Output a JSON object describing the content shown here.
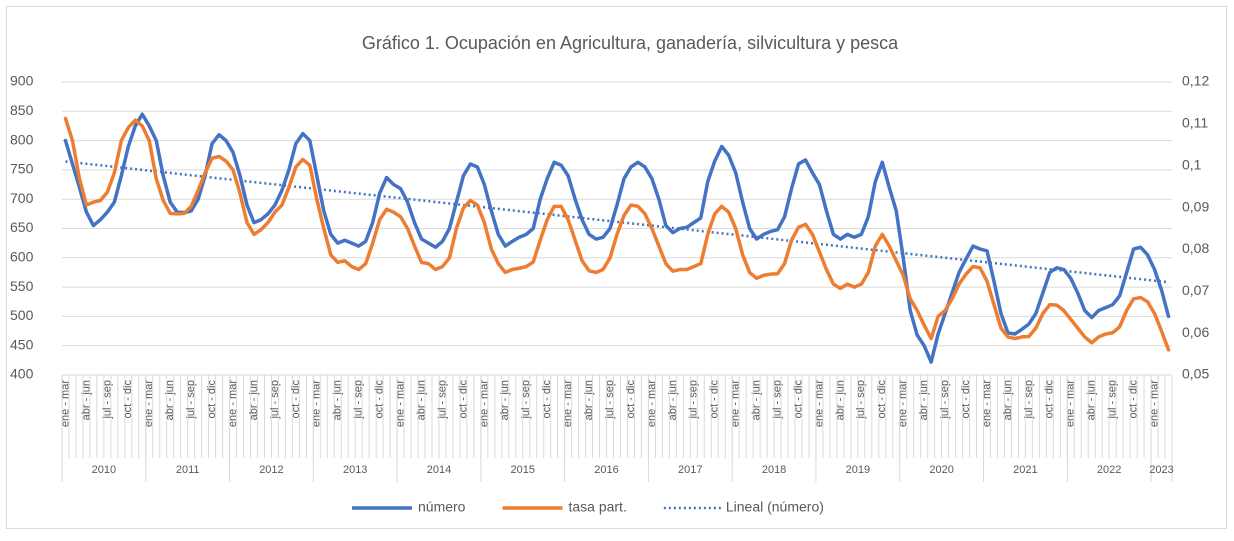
{
  "chart_data": {
    "type": "line",
    "title": "Gráfico 1. Ocupación en Agricultura, ganadería, silvicultura y pesca",
    "categories": [
      "ene - mar",
      null,
      null,
      "abr - jun",
      null,
      null,
      "jul - sep",
      null,
      null,
      "oct - dic",
      null,
      null,
      "ene - mar",
      null,
      null,
      "abr - jun",
      null,
      null,
      "jul - sep",
      null,
      null,
      "oct - dic",
      null,
      null,
      "ene - mar",
      null,
      null,
      "abr - jun",
      null,
      null,
      "jul - sep",
      null,
      null,
      "oct - dic",
      null,
      null,
      "ene - mar",
      null,
      null,
      "abr - jun",
      null,
      null,
      "jul - sep",
      null,
      null,
      "oct - dic",
      null,
      null,
      "ene - mar",
      null,
      null,
      "abr - jun",
      null,
      null,
      "jul - sep",
      null,
      null,
      "oct - dic",
      null,
      null,
      "ene - mar",
      null,
      null,
      "abr - jun",
      null,
      null,
      "jul - sep",
      null,
      null,
      "oct - dic",
      null,
      null,
      "ene - mar",
      null,
      null,
      "abr - jun",
      null,
      null,
      "jul - sep",
      null,
      null,
      "oct - dic",
      null,
      null,
      "ene - mar",
      null,
      null,
      "abr - jun",
      null,
      null,
      "jul - sep",
      null,
      null,
      "oct - dic",
      null,
      null,
      "ene - mar",
      null,
      null,
      "abr - jun",
      null,
      null,
      "jul - sep",
      null,
      null,
      "oct - dic",
      null,
      null,
      "ene - mar",
      null,
      null,
      "abr - jun",
      null,
      null,
      "jul - sep",
      null,
      null,
      "oct - dic",
      null,
      null,
      "ene - mar",
      null,
      null,
      "abr - jun",
      null,
      null,
      "jul - sep",
      null,
      null,
      "oct - dic",
      null,
      null,
      "ene - mar",
      null,
      null,
      "abr - jun",
      null,
      null,
      "jul - sep",
      null,
      null,
      "oct - dic",
      null,
      null,
      "ene - mar",
      null,
      null,
      "abr - jun",
      null,
      null,
      "jul - sep",
      null,
      null,
      "oct - dic",
      null,
      null,
      "ene - mar",
      null,
      null
    ],
    "groups": [
      "2010",
      "2011",
      "2012",
      "2013",
      "2014",
      "2015",
      "2016",
      "2017",
      "2018",
      "2019",
      "2020",
      "2021",
      "2022",
      "2023"
    ],
    "series": [
      {
        "name": "número",
        "color": "#4472c4",
        "values": [
          800,
          760,
          720,
          678,
          655,
          665,
          678,
          695,
          740,
          790,
          825,
          845,
          825,
          800,
          740,
          695,
          678,
          677,
          680,
          700,
          740,
          795,
          810,
          800,
          780,
          740,
          690,
          660,
          665,
          675,
          690,
          715,
          750,
          795,
          812,
          800,
          740,
          680,
          640,
          625,
          630,
          625,
          620,
          628,
          660,
          710,
          737,
          725,
          718,
          695,
          660,
          632,
          625,
          618,
          628,
          650,
          695,
          740,
          760,
          755,
          725,
          680,
          640,
          620,
          628,
          635,
          640,
          650,
          700,
          735,
          763,
          758,
          740,
          700,
          665,
          640,
          632,
          635,
          650,
          690,
          735,
          755,
          763,
          755,
          735,
          700,
          655,
          643,
          650,
          652,
          660,
          668,
          730,
          765,
          790,
          775,
          745,
          695,
          650,
          632,
          640,
          645,
          648,
          670,
          718,
          760,
          767,
          745,
          725,
          680,
          640,
          632,
          640,
          635,
          640,
          670,
          730,
          763,
          720,
          680,
          600,
          510,
          468,
          450,
          422,
          470,
          505,
          540,
          575,
          598,
          620,
          615,
          612,
          560,
          505,
          472,
          470,
          478,
          487,
          505,
          540,
          575,
          583,
          580,
          565,
          540,
          510,
          498,
          510,
          515,
          520,
          535,
          575,
          615,
          618,
          605,
          580,
          545,
          500
        ]
      },
      {
        "name": "tasa part.",
        "color": "#ed7d31",
        "axis": "y2",
        "values": [
          0.1113,
          0.106,
          0.0969,
          0.0906,
          0.0913,
          0.0917,
          0.0937,
          0.0983,
          0.106,
          0.1091,
          0.1109,
          0.1095,
          0.106,
          0.0969,
          0.0917,
          0.0886,
          0.0885,
          0.0886,
          0.0903,
          0.0941,
          0.0983,
          0.1018,
          0.1022,
          0.1011,
          0.099,
          0.0934,
          0.0864,
          0.0836,
          0.0847,
          0.0864,
          0.0889,
          0.0906,
          0.0948,
          0.0997,
          0.1015,
          0.1001,
          0.092,
          0.085,
          0.0787,
          0.0769,
          0.0773,
          0.0759,
          0.0752,
          0.0766,
          0.0815,
          0.0871,
          0.0896,
          0.0889,
          0.0878,
          0.085,
          0.0808,
          0.0769,
          0.0766,
          0.0752,
          0.0759,
          0.078,
          0.085,
          0.0899,
          0.0917,
          0.0906,
          0.0864,
          0.0801,
          0.0766,
          0.0745,
          0.0752,
          0.0755,
          0.0759,
          0.077,
          0.0822,
          0.0871,
          0.0903,
          0.0903,
          0.0871,
          0.0822,
          0.0773,
          0.0749,
          0.0745,
          0.0752,
          0.078,
          0.0836,
          0.0881,
          0.0906,
          0.0903,
          0.0885,
          0.085,
          0.0808,
          0.0766,
          0.0748,
          0.0752,
          0.0752,
          0.0759,
          0.0766,
          0.0836,
          0.0885,
          0.0903,
          0.0889,
          0.085,
          0.0787,
          0.0745,
          0.0731,
          0.0738,
          0.0741,
          0.0742,
          0.0766,
          0.0822,
          0.0853,
          0.086,
          0.0836,
          0.0794,
          0.0752,
          0.0717,
          0.0707,
          0.0717,
          0.071,
          0.0717,
          0.0745,
          0.0808,
          0.0836,
          0.0808,
          0.0773,
          0.0738,
          0.0682,
          0.0654,
          0.0619,
          0.0587,
          0.064,
          0.0654,
          0.0682,
          0.0717,
          0.0741,
          0.0759,
          0.0756,
          0.0724,
          0.0668,
          0.0612,
          0.0591,
          0.0587,
          0.0591,
          0.0592,
          0.0612,
          0.0647,
          0.0668,
          0.0667,
          0.0654,
          0.0633,
          0.0612,
          0.0591,
          0.0577,
          0.0591,
          0.0598,
          0.0601,
          0.0615,
          0.0654,
          0.0682,
          0.0685,
          0.0675,
          0.0647,
          0.0605,
          0.056
        ]
      }
    ],
    "trendline": {
      "name": "Lineal (número)",
      "series": 0,
      "color": "#4472c4",
      "style": "dotted"
    },
    "ylim": [
      400,
      900
    ],
    "yticks": [
      400,
      450,
      500,
      550,
      600,
      650,
      700,
      750,
      800,
      850,
      900
    ],
    "y2lim": [
      0.05,
      0.12
    ],
    "y2ticks": [
      {
        "value": 0.05,
        "label": "0,05"
      },
      {
        "value": 0.06,
        "label": "0,06"
      },
      {
        "value": 0.07,
        "label": "0,07"
      },
      {
        "value": 0.08,
        "label": "0,08"
      },
      {
        "value": 0.09,
        "label": "0,09"
      },
      {
        "value": 0.1,
        "label": "0,1"
      },
      {
        "value": 0.11,
        "label": "0,11"
      },
      {
        "value": 0.12,
        "label": "0,12"
      }
    ],
    "grid": true,
    "legend": "bottom"
  }
}
